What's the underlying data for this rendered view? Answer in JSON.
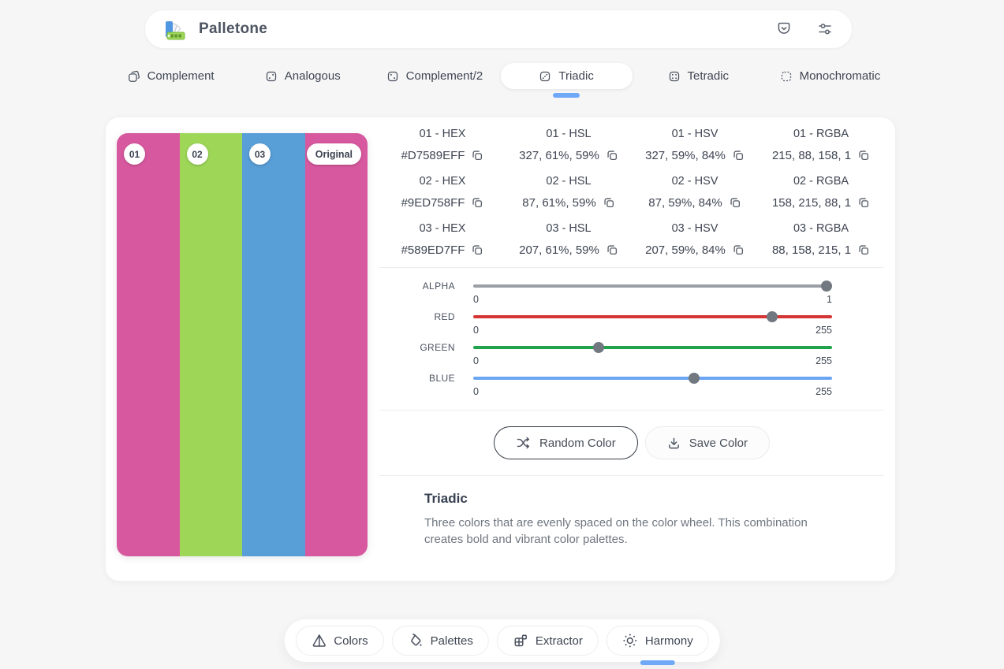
{
  "header": {
    "title": "Palletone",
    "icons": {
      "left": "palette-fan-logo",
      "right": [
        "pocket-save-icon",
        "preferences-sliders-icon"
      ]
    }
  },
  "tabs": [
    {
      "label": "Complement",
      "icon": "complement-icon",
      "active": false
    },
    {
      "label": "Analogous",
      "icon": "analogous-icon",
      "active": false
    },
    {
      "label": "Complement/2",
      "icon": "complement-2-icon",
      "active": false
    },
    {
      "label": "Triadic",
      "icon": "triadic-icon",
      "active": true
    },
    {
      "label": "Tetradic",
      "icon": "tetradic-icon",
      "active": false
    },
    {
      "label": "Monochromatic",
      "icon": "monochromatic-icon",
      "active": false
    }
  ],
  "palette": {
    "swatches": [
      {
        "label": "01",
        "color": "#D7589E"
      },
      {
        "label": "02",
        "color": "#9ED758"
      },
      {
        "label": "03",
        "color": "#589ED7"
      },
      {
        "label": "Original",
        "color": "#D7589E"
      }
    ]
  },
  "values": {
    "groups": [
      {
        "hex": {
          "label": "01 - HEX",
          "value": "#D7589EFF"
        },
        "hsl": {
          "label": "01 - HSL",
          "value": "327, 61%, 59%"
        },
        "hsv": {
          "label": "01 - HSV",
          "value": "327, 59%, 84%"
        },
        "rgba": {
          "label": "01 - RGBA",
          "value": "215, 88, 158, 1"
        }
      },
      {
        "hex": {
          "label": "02 - HEX",
          "value": "#9ED758FF"
        },
        "hsl": {
          "label": "02 - HSL",
          "value": "87, 61%, 59%"
        },
        "hsv": {
          "label": "02 - HSV",
          "value": "87, 59%, 84%"
        },
        "rgba": {
          "label": "02 - RGBA",
          "value": "158, 215, 88, 1"
        }
      },
      {
        "hex": {
          "label": "03 - HEX",
          "value": "#589ED7FF"
        },
        "hsl": {
          "label": "03 - HSL",
          "value": "207, 61%, 59%"
        },
        "hsv": {
          "label": "03 - HSV",
          "value": "207, 59%, 84%"
        },
        "rgba": {
          "label": "03 - RGBA",
          "value": "88, 158, 215, 1"
        }
      }
    ]
  },
  "sliders": [
    {
      "name": "ALPHA",
      "min_label": "0",
      "max_label": "1",
      "value": 1,
      "max": 1,
      "track_color": "#9aa0a6"
    },
    {
      "name": "RED",
      "min_label": "0",
      "max_label": "255",
      "value": 215,
      "max": 255,
      "track_color": "#d53434"
    },
    {
      "name": "GREEN",
      "min_label": "0",
      "max_label": "255",
      "value": 88,
      "max": 255,
      "track_color": "#21a24c"
    },
    {
      "name": "BLUE",
      "min_label": "0",
      "max_label": "255",
      "value": 158,
      "max": 255,
      "track_color": "#6ba6f5"
    }
  ],
  "actions": {
    "random_label": "Random Color",
    "save_label": "Save Color"
  },
  "description": {
    "title": "Triadic",
    "text": "Three colors that are evenly spaced on the color wheel. This combination creates bold and vibrant color palettes."
  },
  "bottom_nav": [
    {
      "label": "Colors",
      "icon": "prism-icon",
      "active": false
    },
    {
      "label": "Palettes",
      "icon": "bucket-icon",
      "active": false
    },
    {
      "label": "Extractor",
      "icon": "extractor-icon",
      "active": false
    },
    {
      "label": "Harmony",
      "icon": "harmony-icon",
      "active": true
    }
  ],
  "accent": {
    "active_underline": "#6ea8f7",
    "thumb": "#717880"
  }
}
